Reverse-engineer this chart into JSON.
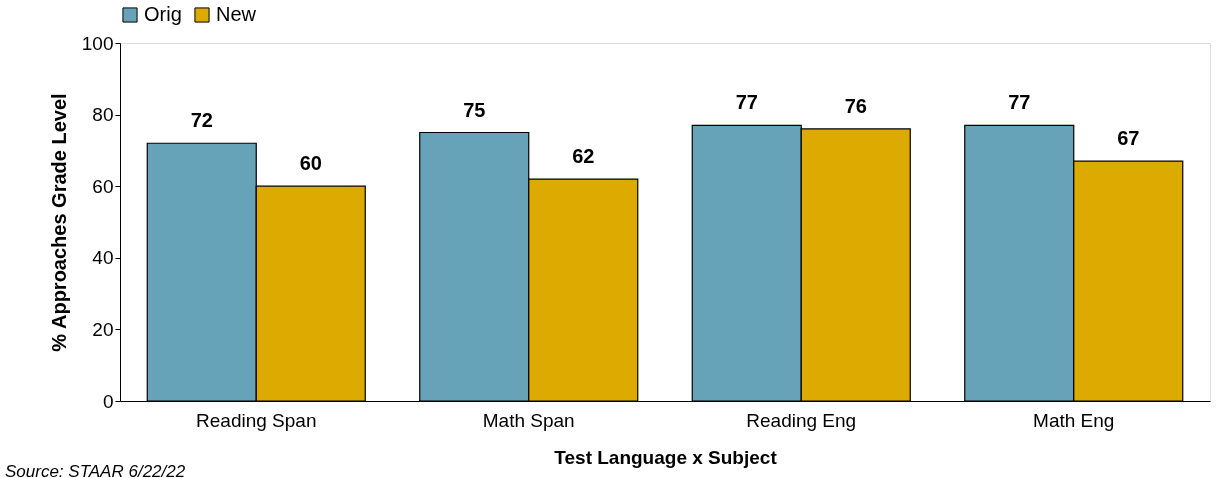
{
  "chart_data": {
    "type": "bar",
    "xlabel": "Test Language x Subject",
    "ylabel": "% Approaches Grade Level",
    "categories": [
      "Reading Span",
      "Math Span",
      "Reading Eng",
      "Math Eng"
    ],
    "series": [
      {
        "name": "Orig",
        "color": "#67a3b8",
        "values": [
          72,
          75,
          77,
          77
        ]
      },
      {
        "name": "New",
        "color": "#dcaa00",
        "values": [
          60,
          62,
          76,
          67
        ]
      }
    ],
    "ylim": [
      0,
      100
    ],
    "yticks": [
      0,
      20,
      40,
      60,
      80,
      100
    ],
    "grid": false,
    "legend": "top",
    "data_labels": true,
    "annotations": [
      "Source: STAAR 6/22/22"
    ]
  }
}
